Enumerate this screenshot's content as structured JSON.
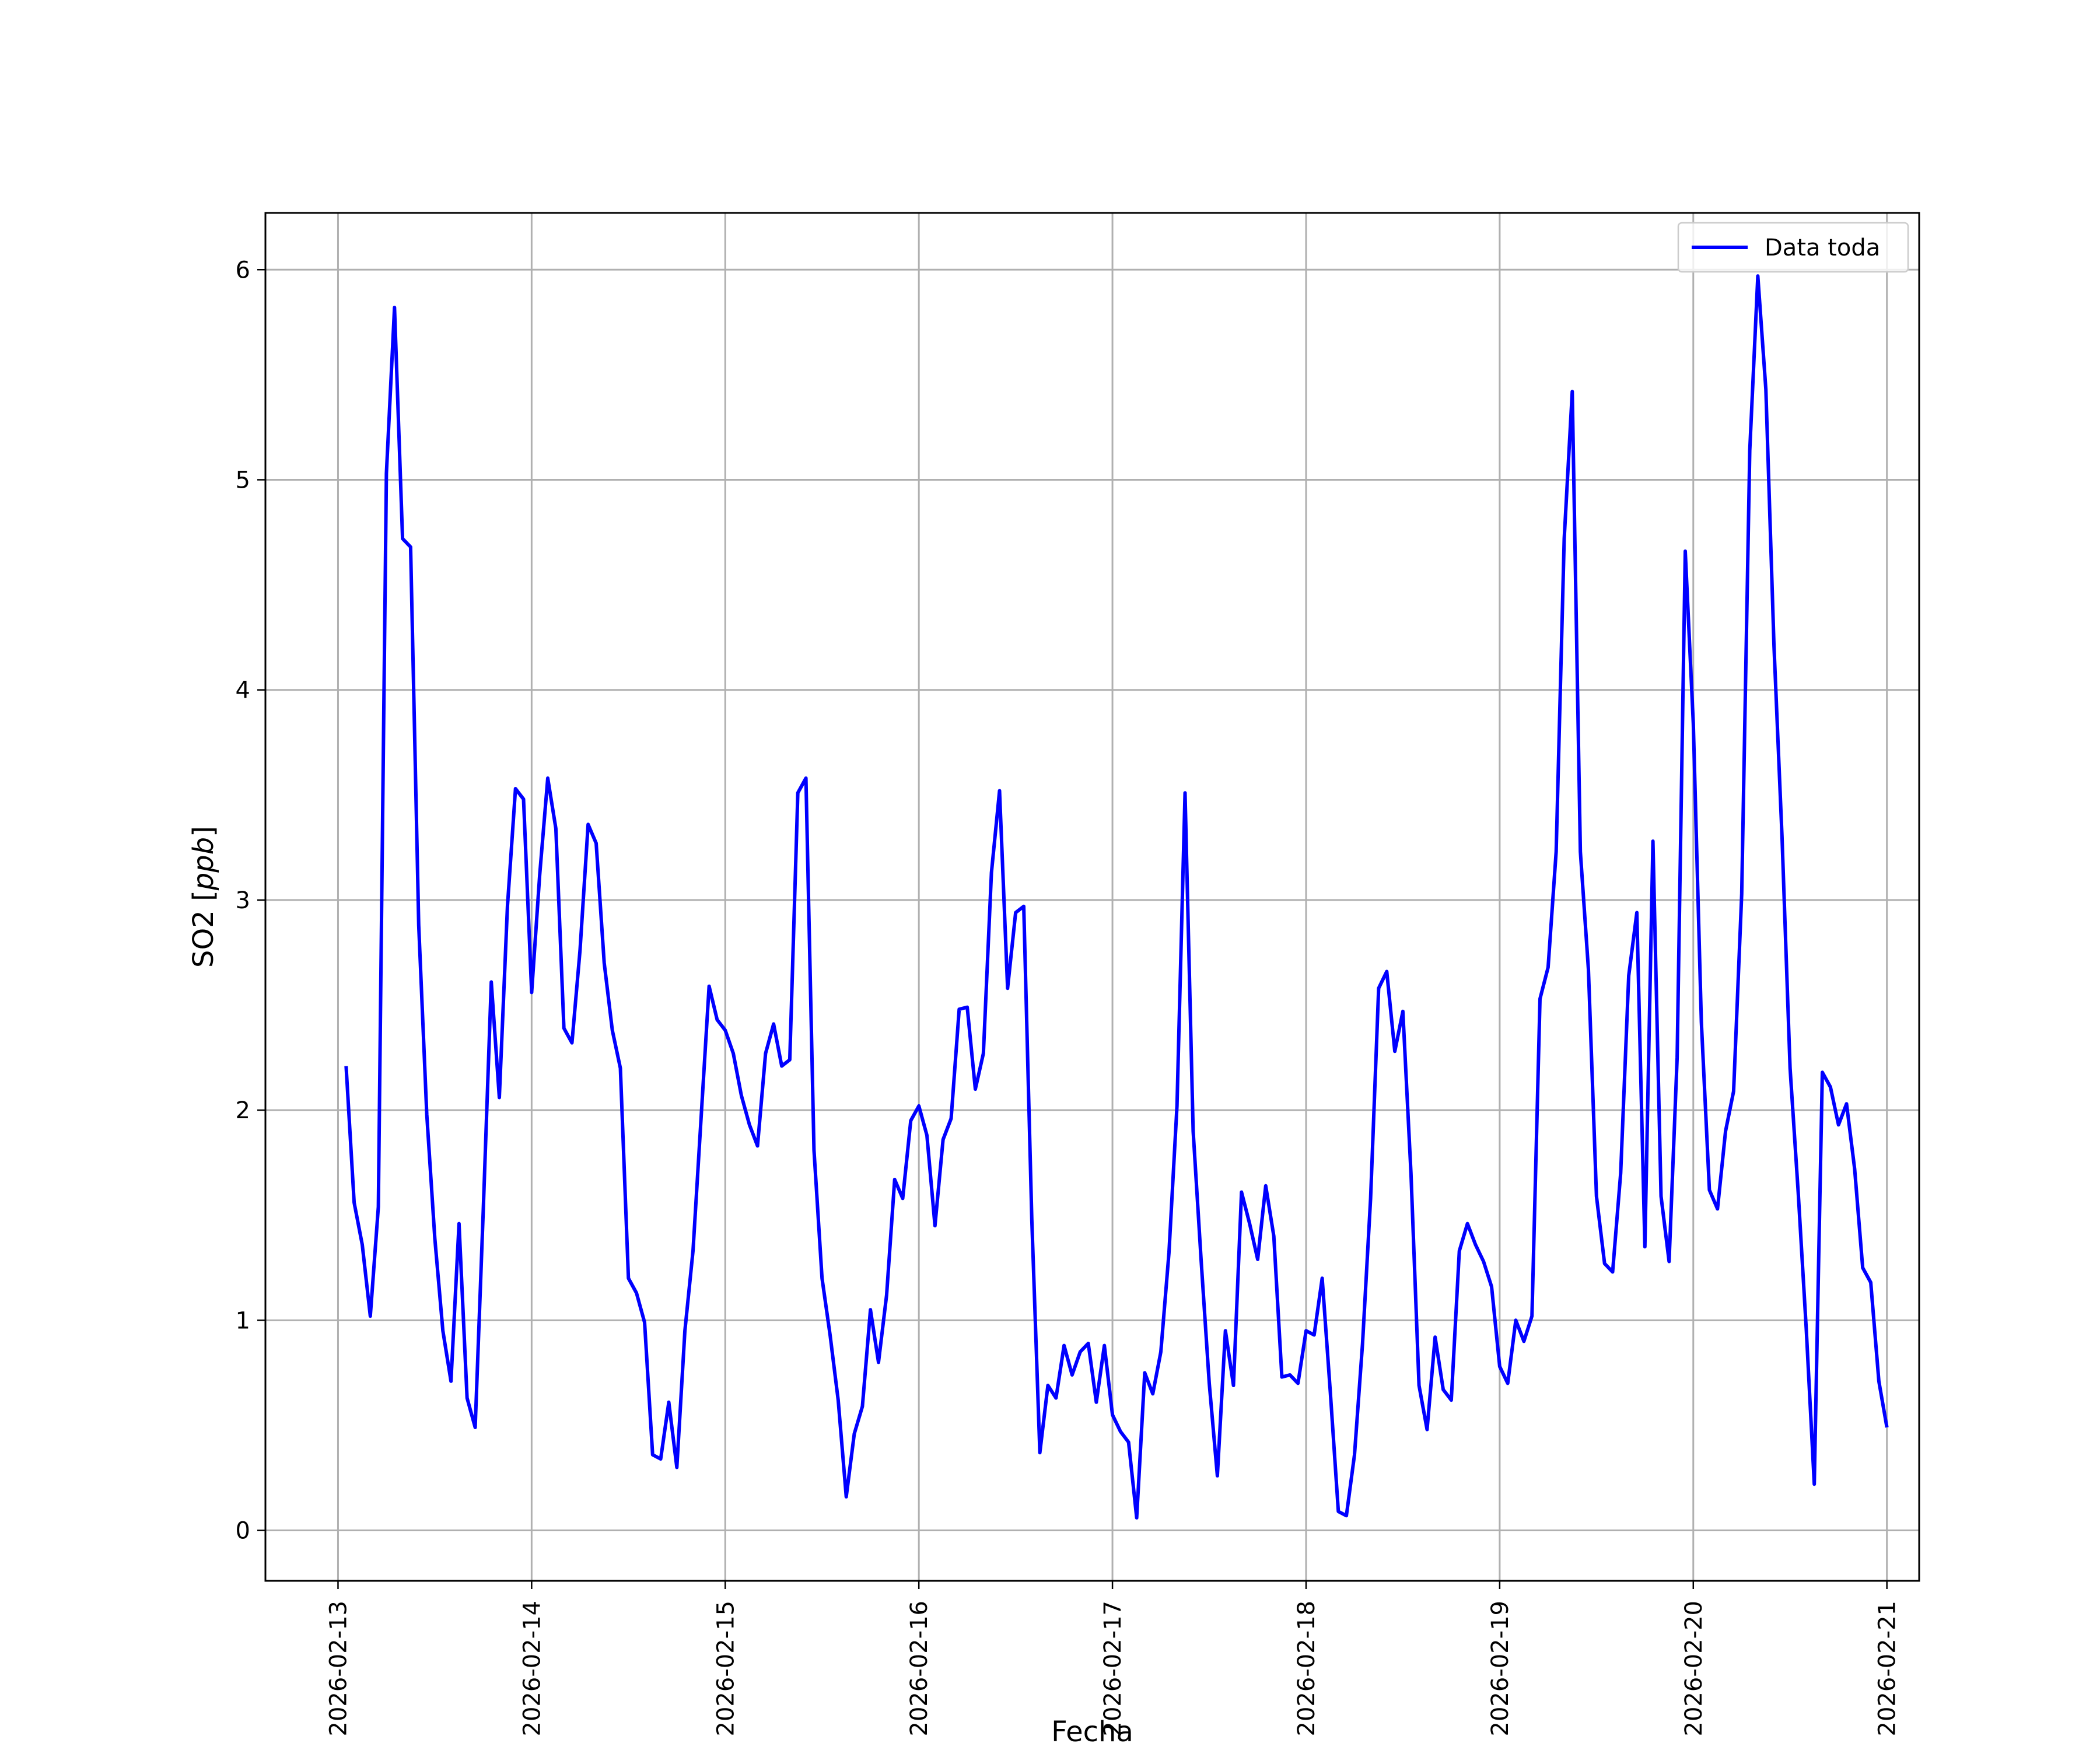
{
  "chart_data": {
    "type": "line",
    "title": "",
    "xlabel": "Fecha",
    "ylabel_text": "SO2 ",
    "ylabel_unit": "ppb",
    "xlim": [
      "2026-02-12T15:00",
      "2026-02-21T04:00"
    ],
    "ylim": [
      -0.24,
      6.27
    ],
    "x_ticks": [
      "2026-02-13",
      "2026-02-14",
      "2026-02-15",
      "2026-02-16",
      "2026-02-17",
      "2026-02-18",
      "2026-02-19",
      "2026-02-20",
      "2026-02-21"
    ],
    "y_ticks": [
      0,
      1,
      2,
      3,
      4,
      5,
      6
    ],
    "grid": true,
    "legend_position": "top-right",
    "line_color": "#0000ff",
    "series": [
      {
        "name": "Data toda",
        "color": "#0000ff",
        "x": [
          "2026-02-13T01:00",
          "2026-02-13T02:00",
          "2026-02-13T03:00",
          "2026-02-13T04:00",
          "2026-02-13T05:00",
          "2026-02-13T06:00",
          "2026-02-13T07:00",
          "2026-02-13T08:00",
          "2026-02-13T09:00",
          "2026-02-13T10:00",
          "2026-02-13T11:00",
          "2026-02-13T12:00",
          "2026-02-13T13:00",
          "2026-02-13T14:00",
          "2026-02-13T15:00",
          "2026-02-13T16:00",
          "2026-02-13T17:00",
          "2026-02-13T18:00",
          "2026-02-13T19:00",
          "2026-02-13T20:00",
          "2026-02-13T21:00",
          "2026-02-13T22:00",
          "2026-02-13T23:00",
          "2026-02-14T00:00",
          "2026-02-14T01:00",
          "2026-02-14T02:00",
          "2026-02-14T03:00",
          "2026-02-14T04:00",
          "2026-02-14T05:00",
          "2026-02-14T06:00",
          "2026-02-14T07:00",
          "2026-02-14T08:00",
          "2026-02-14T09:00",
          "2026-02-14T10:00",
          "2026-02-14T11:00",
          "2026-02-14T12:00",
          "2026-02-14T13:00",
          "2026-02-14T14:00",
          "2026-02-14T15:00",
          "2026-02-14T16:00",
          "2026-02-14T17:00",
          "2026-02-14T18:00",
          "2026-02-14T19:00",
          "2026-02-14T20:00",
          "2026-02-14T21:00",
          "2026-02-14T22:00",
          "2026-02-14T23:00",
          "2026-02-15T00:00",
          "2026-02-15T01:00",
          "2026-02-15T02:00",
          "2026-02-15T03:00",
          "2026-02-15T04:00",
          "2026-02-15T05:00",
          "2026-02-15T06:00",
          "2026-02-15T07:00",
          "2026-02-15T08:00",
          "2026-02-15T09:00",
          "2026-02-15T10:00",
          "2026-02-15T11:00",
          "2026-02-15T12:00",
          "2026-02-15T13:00",
          "2026-02-15T14:00",
          "2026-02-15T15:00",
          "2026-02-15T16:00",
          "2026-02-15T17:00",
          "2026-02-15T18:00",
          "2026-02-15T19:00",
          "2026-02-15T20:00",
          "2026-02-15T21:00",
          "2026-02-15T22:00",
          "2026-02-15T23:00",
          "2026-02-16T00:00",
          "2026-02-16T01:00",
          "2026-02-16T02:00",
          "2026-02-16T03:00",
          "2026-02-16T04:00",
          "2026-02-16T05:00",
          "2026-02-16T06:00",
          "2026-02-16T07:00",
          "2026-02-16T08:00",
          "2026-02-16T09:00",
          "2026-02-16T10:00",
          "2026-02-16T11:00",
          "2026-02-16T12:00",
          "2026-02-16T13:00",
          "2026-02-16T14:00",
          "2026-02-16T15:00",
          "2026-02-16T16:00",
          "2026-02-16T17:00",
          "2026-02-16T18:00",
          "2026-02-16T19:00",
          "2026-02-16T20:00",
          "2026-02-16T21:00",
          "2026-02-16T22:00",
          "2026-02-16T23:00",
          "2026-02-17T00:00",
          "2026-02-17T01:00",
          "2026-02-17T02:00",
          "2026-02-17T03:00",
          "2026-02-17T04:00",
          "2026-02-17T05:00",
          "2026-02-17T06:00",
          "2026-02-17T07:00",
          "2026-02-17T08:00",
          "2026-02-17T09:00",
          "2026-02-17T10:00",
          "2026-02-17T11:00",
          "2026-02-17T12:00",
          "2026-02-17T13:00",
          "2026-02-17T14:00",
          "2026-02-17T15:00",
          "2026-02-17T16:00",
          "2026-02-17T17:00",
          "2026-02-17T18:00",
          "2026-02-17T19:00",
          "2026-02-17T20:00",
          "2026-02-17T21:00",
          "2026-02-17T22:00",
          "2026-02-17T23:00",
          "2026-02-18T00:00",
          "2026-02-18T01:00",
          "2026-02-18T02:00",
          "2026-02-18T03:00",
          "2026-02-18T04:00",
          "2026-02-18T05:00",
          "2026-02-18T06:00",
          "2026-02-18T07:00",
          "2026-02-18T08:00",
          "2026-02-18T09:00",
          "2026-02-18T10:00",
          "2026-02-18T11:00",
          "2026-02-18T12:00",
          "2026-02-18T13:00",
          "2026-02-18T14:00",
          "2026-02-18T15:00",
          "2026-02-18T16:00",
          "2026-02-18T17:00",
          "2026-02-18T18:00",
          "2026-02-18T19:00",
          "2026-02-18T20:00",
          "2026-02-18T21:00",
          "2026-02-18T22:00",
          "2026-02-18T23:00",
          "2026-02-19T00:00",
          "2026-02-19T01:00",
          "2026-02-19T02:00",
          "2026-02-19T03:00",
          "2026-02-19T04:00",
          "2026-02-19T05:00",
          "2026-02-19T06:00",
          "2026-02-19T07:00",
          "2026-02-19T08:00",
          "2026-02-19T09:00",
          "2026-02-19T10:00",
          "2026-02-19T11:00",
          "2026-02-19T12:00",
          "2026-02-19T13:00",
          "2026-02-19T14:00",
          "2026-02-19T15:00",
          "2026-02-19T16:00",
          "2026-02-19T17:00",
          "2026-02-19T18:00",
          "2026-02-19T19:00",
          "2026-02-19T20:00",
          "2026-02-19T21:00",
          "2026-02-19T22:00",
          "2026-02-19T23:00",
          "2026-02-20T00:00",
          "2026-02-20T01:00",
          "2026-02-20T02:00",
          "2026-02-20T03:00",
          "2026-02-20T04:00",
          "2026-02-20T05:00",
          "2026-02-20T06:00",
          "2026-02-20T07:00",
          "2026-02-20T08:00",
          "2026-02-20T09:00",
          "2026-02-20T10:00",
          "2026-02-20T11:00",
          "2026-02-20T12:00",
          "2026-02-20T13:00",
          "2026-02-20T14:00",
          "2026-02-20T15:00",
          "2026-02-20T16:00",
          "2026-02-20T17:00",
          "2026-02-20T18:00",
          "2026-02-20T19:00",
          "2026-02-20T20:00",
          "2026-02-20T21:00",
          "2026-02-20T22:00",
          "2026-02-20T23:00",
          "2026-02-21T00:00"
        ],
        "values": [
          2.21,
          1.56,
          1.36,
          1.02,
          1.54,
          5.03,
          5.82,
          4.72,
          4.68,
          2.88,
          1.98,
          1.39,
          0.95,
          0.71,
          1.46,
          0.63,
          0.49,
          1.52,
          2.61,
          2.06,
          2.97,
          3.53,
          3.48,
          2.56,
          3.12,
          3.58,
          3.34,
          2.39,
          2.32,
          2.76,
          3.36,
          3.27,
          2.7,
          2.38,
          2.2,
          1.2,
          1.13,
          0.99,
          0.36,
          0.34,
          0.61,
          0.3,
          0.95,
          1.33,
          1.96,
          2.59,
          2.43,
          2.38,
          2.27,
          2.07,
          1.93,
          1.83,
          2.27,
          2.41,
          2.21,
          2.24,
          3.51,
          3.58,
          1.81,
          1.2,
          0.93,
          0.62,
          0.16,
          0.46,
          0.59,
          1.05,
          0.8,
          1.12,
          1.67,
          1.58,
          1.95,
          2.02,
          1.88,
          1.45,
          1.86,
          1.96,
          2.48,
          2.49,
          2.1,
          2.27,
          3.13,
          3.52,
          2.58,
          2.94,
          2.97,
          1.48,
          0.37,
          0.69,
          0.63,
          0.88,
          0.74,
          0.85,
          0.89,
          0.61,
          0.88,
          0.55,
          0.47,
          0.42,
          0.06,
          0.75,
          0.65,
          0.85,
          1.32,
          2.02,
          3.51,
          1.9,
          1.28,
          0.7,
          0.26,
          0.95,
          0.69,
          1.61,
          1.46,
          1.29,
          1.64,
          1.4,
          0.73,
          0.74,
          0.7,
          0.95,
          0.93,
          1.2,
          0.66,
          0.09,
          0.07,
          0.36,
          0.89,
          1.58,
          2.58,
          2.66,
          2.28,
          2.47,
          1.7,
          0.69,
          0.48,
          0.92,
          0.67,
          0.62,
          1.33,
          1.46,
          1.36,
          1.28,
          1.16,
          0.78,
          0.7,
          1.0,
          0.9,
          1.02,
          2.53,
          2.68,
          3.23,
          4.72,
          5.42,
          3.23,
          2.67,
          1.59,
          1.27,
          1.23,
          1.7,
          2.64,
          2.94,
          1.35,
          3.28,
          1.59,
          1.28,
          2.25,
          4.66,
          3.84,
          2.42,
          1.62,
          1.53,
          1.9,
          2.09,
          3.03,
          5.14,
          5.97,
          5.43,
          4.21,
          3.3,
          2.2,
          1.61,
          0.96,
          0.22,
          2.18,
          2.11,
          1.93,
          2.03,
          1.72,
          1.25,
          1.18,
          0.71,
          0.49
        ]
      }
    ]
  }
}
